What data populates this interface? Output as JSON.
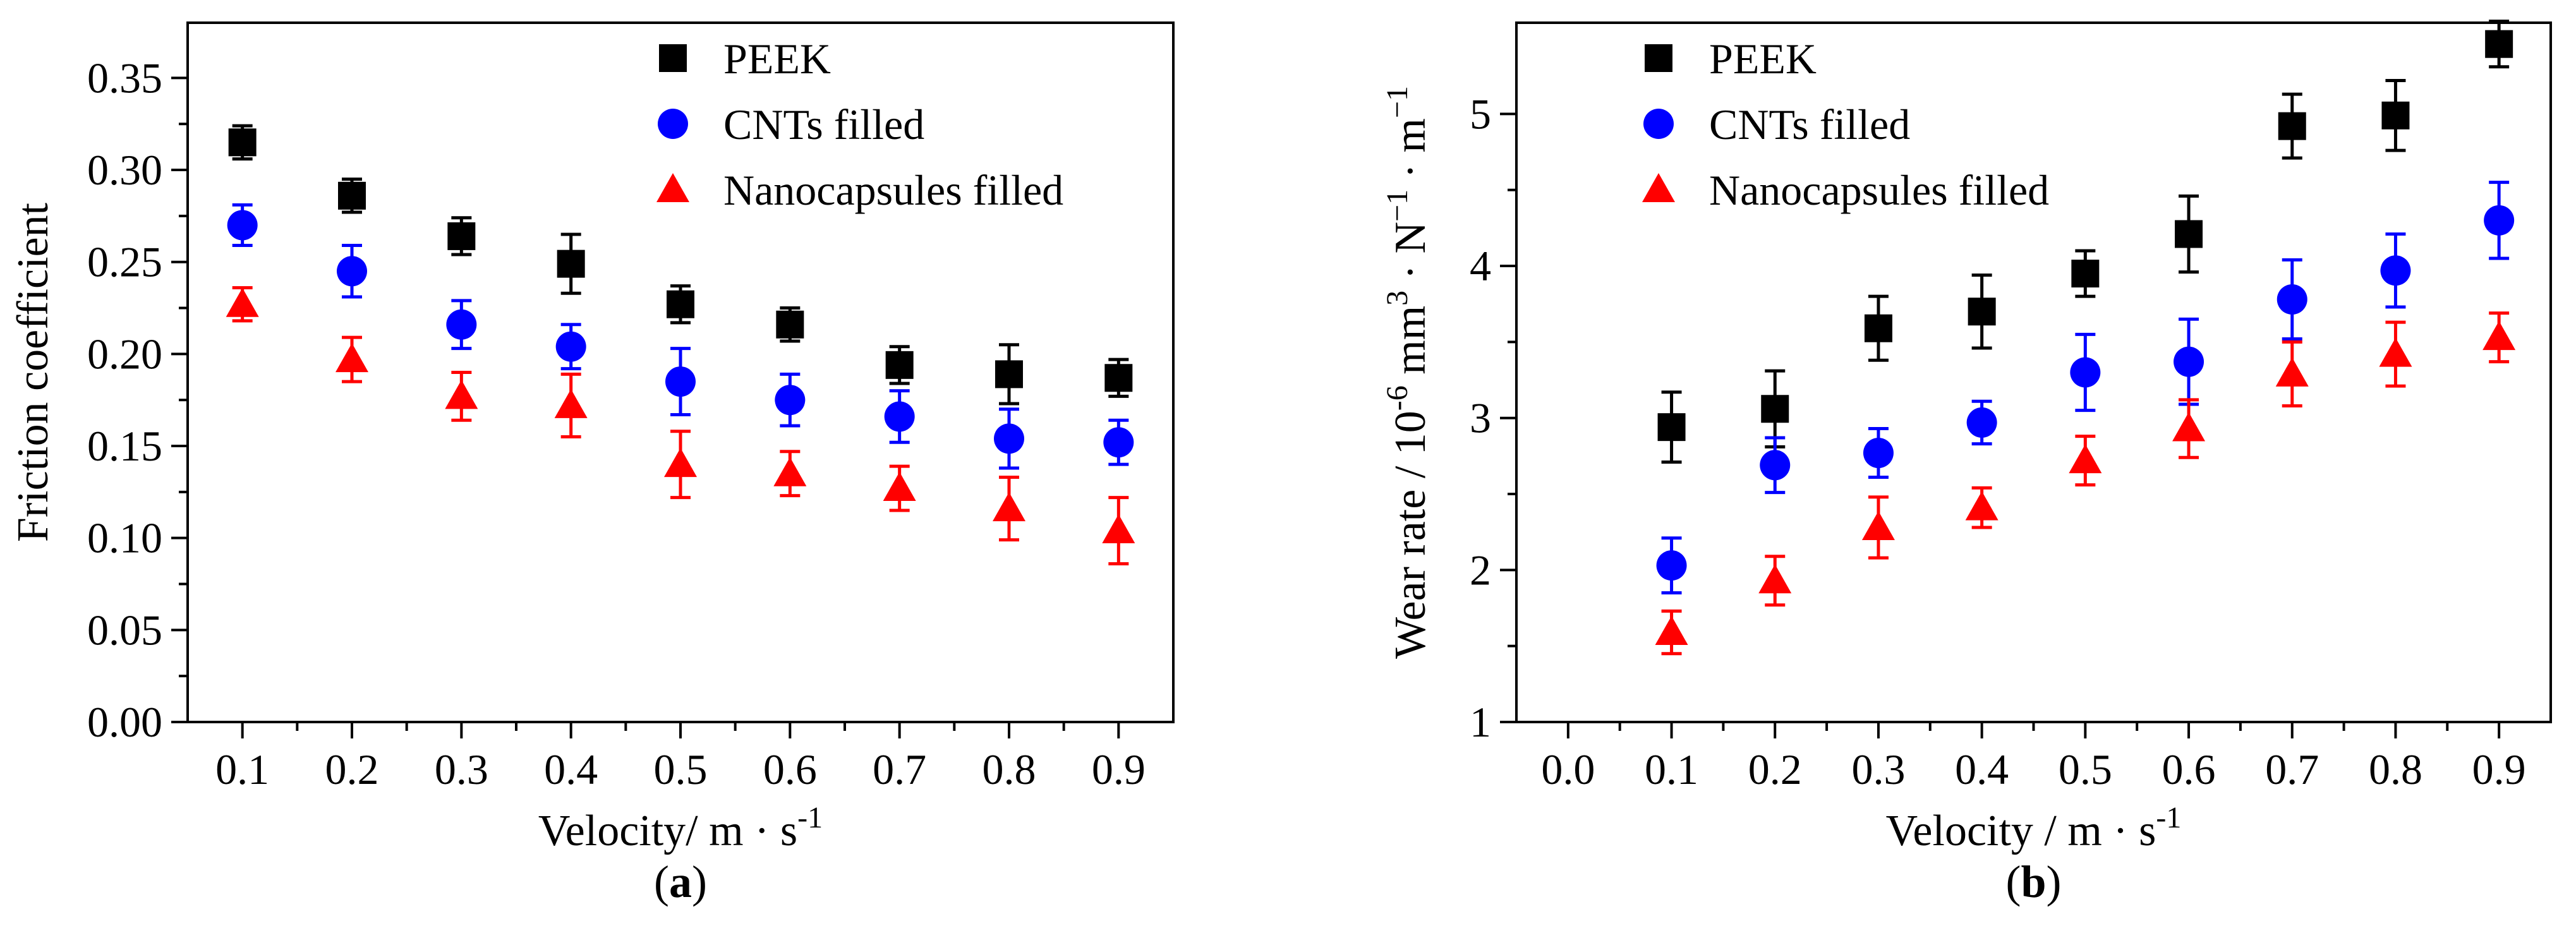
{
  "chart_data": [
    {
      "type": "scatter",
      "panel_label": "a",
      "xlabel": "Velocity/ m · s",
      "xlabel_sup": "-1",
      "ylabel": "Friction coefficient",
      "xlim": [
        0.05,
        0.95
      ],
      "ylim": [
        0,
        0.38
      ],
      "x_ticks": [
        0.1,
        0.2,
        0.3,
        0.4,
        0.5,
        0.6,
        0.7,
        0.8,
        0.9
      ],
      "x_tick_labels": [
        "0.1",
        "0.2",
        "0.3",
        "0.4",
        "0.5",
        "0.6",
        "0.7",
        "0.8",
        "0.9"
      ],
      "y_ticks": [
        0,
        0.05,
        0.1,
        0.15,
        0.2,
        0.25,
        0.3,
        0.35
      ],
      "y_tick_labels": [
        "0.00",
        "0.05",
        "0.10",
        "0.15",
        "0.20",
        "0.25",
        "0.30",
        "0.35"
      ],
      "legend_position": "top-right",
      "series": [
        {
          "name": "PEEK",
          "marker": "square",
          "color": "#000000",
          "x": [
            0.1,
            0.2,
            0.3,
            0.4,
            0.5,
            0.6,
            0.7,
            0.8,
            0.9
          ],
          "y": [
            0.315,
            0.286,
            0.264,
            0.249,
            0.227,
            0.216,
            0.194,
            0.189,
            0.187
          ],
          "err": [
            0.009,
            0.009,
            0.01,
            0.016,
            0.01,
            0.009,
            0.01,
            0.016,
            0.01
          ]
        },
        {
          "name": "CNTs filled",
          "marker": "circle",
          "color": "#0000ff",
          "x": [
            0.1,
            0.2,
            0.3,
            0.4,
            0.5,
            0.6,
            0.7,
            0.8,
            0.9
          ],
          "y": [
            0.27,
            0.245,
            0.216,
            0.204,
            0.185,
            0.175,
            0.166,
            0.154,
            0.152
          ],
          "err": [
            0.011,
            0.014,
            0.013,
            0.012,
            0.018,
            0.014,
            0.014,
            0.016,
            0.012
          ]
        },
        {
          "name": "Nanocapsules filled",
          "marker": "triangle",
          "color": "#ff0000",
          "x": [
            0.1,
            0.2,
            0.3,
            0.4,
            0.5,
            0.6,
            0.7,
            0.8,
            0.9
          ],
          "y": [
            0.227,
            0.197,
            0.177,
            0.172,
            0.14,
            0.135,
            0.127,
            0.116,
            0.104
          ],
          "err": [
            0.009,
            0.012,
            0.013,
            0.017,
            0.018,
            0.012,
            0.012,
            0.017,
            0.018
          ]
        }
      ]
    },
    {
      "type": "scatter",
      "panel_label": "b",
      "xlabel": "Velocity / m · s",
      "xlabel_sup": "-1",
      "ylabel_parts": [
        "Wear rate / 10",
        "-6",
        " mm",
        "3",
        " · N",
        "−1",
        " · m",
        "−1"
      ],
      "xlim": [
        -0.05,
        0.95
      ],
      "ylim": [
        1,
        5.6
      ],
      "x_ticks": [
        0.0,
        0.1,
        0.2,
        0.3,
        0.4,
        0.5,
        0.6,
        0.7,
        0.8,
        0.9
      ],
      "x_tick_labels": [
        "0.0",
        "0.1",
        "0.2",
        "0.3",
        "0.4",
        "0.5",
        "0.6",
        "0.7",
        "0.8",
        "0.9"
      ],
      "y_ticks": [
        1,
        2,
        3,
        4,
        5
      ],
      "y_tick_labels": [
        "1",
        "2",
        "3",
        "4",
        "5"
      ],
      "legend_position": "top-left",
      "series": [
        {
          "name": "PEEK",
          "marker": "square",
          "color": "#000000",
          "x": [
            0.1,
            0.2,
            0.3,
            0.4,
            0.5,
            0.6,
            0.7,
            0.8,
            0.9
          ],
          "y": [
            2.94,
            3.06,
            3.59,
            3.7,
            3.95,
            4.21,
            4.92,
            4.99,
            5.46
          ],
          "err": [
            0.23,
            0.25,
            0.21,
            0.24,
            0.15,
            0.25,
            0.21,
            0.23,
            0.15
          ]
        },
        {
          "name": "CNTs filled",
          "marker": "circle",
          "color": "#0000ff",
          "x": [
            0.1,
            0.2,
            0.3,
            0.4,
            0.5,
            0.6,
            0.7,
            0.8,
            0.9
          ],
          "y": [
            2.03,
            2.69,
            2.77,
            2.97,
            3.3,
            3.37,
            3.78,
            3.97,
            4.3
          ],
          "err": [
            0.18,
            0.18,
            0.16,
            0.14,
            0.25,
            0.28,
            0.26,
            0.24,
            0.25
          ]
        },
        {
          "name": "Nanocapsules filled",
          "marker": "triangle",
          "color": "#ff0000",
          "x": [
            0.1,
            0.2,
            0.3,
            0.4,
            0.5,
            0.6,
            0.7,
            0.8,
            0.9
          ],
          "y": [
            1.59,
            1.93,
            2.28,
            2.41,
            2.72,
            2.93,
            3.29,
            3.42,
            3.53
          ],
          "err": [
            0.14,
            0.16,
            0.2,
            0.13,
            0.16,
            0.19,
            0.21,
            0.21,
            0.16
          ]
        }
      ]
    }
  ]
}
